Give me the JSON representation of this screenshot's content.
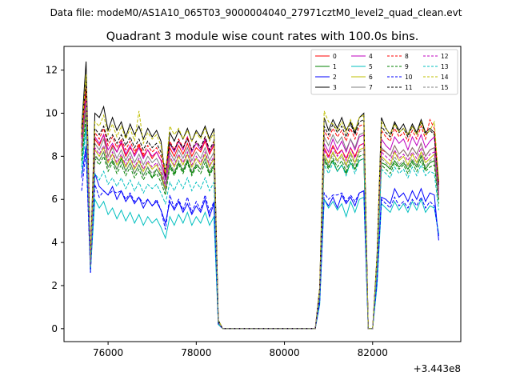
{
  "figure": {
    "suptitle": "Data file: modeM0/AS1A10_065T03_9000004040_27971cztM0_level2_quad_clean.evt"
  },
  "chart_data": {
    "type": "line",
    "title": "Quadrant 3 module wise count rates with 100.0s bins.",
    "xlabel": "",
    "ylabel": "",
    "offset_label": "+3.443e8",
    "xlim": [
      75000,
      84000
    ],
    "ylim": [
      -0.6,
      13.1
    ],
    "xticks": [
      76000,
      78000,
      80000,
      82000
    ],
    "xtick_labels": [
      "76000",
      "78000",
      "80000",
      "82000"
    ],
    "yticks": [
      0,
      2,
      4,
      6,
      8,
      10,
      12
    ],
    "ytick_labels": [
      "0",
      "2",
      "4",
      "6",
      "8",
      "10",
      "12"
    ],
    "legend_position": "top-right",
    "legend_columns": 4,
    "x": [
      75400,
      75500,
      75600,
      75700,
      75800,
      75900,
      76000,
      76100,
      76200,
      76300,
      76400,
      76500,
      76600,
      76700,
      76800,
      76900,
      77000,
      77100,
      77200,
      77300,
      77400,
      77500,
      77600,
      77700,
      77800,
      77900,
      78000,
      78100,
      78200,
      78300,
      78400,
      78500,
      78600,
      78700,
      80700,
      80800,
      80900,
      81000,
      81100,
      81200,
      81300,
      81400,
      81500,
      81600,
      81700,
      81800,
      81900,
      82000,
      82100,
      82200,
      82300,
      82400,
      82500,
      82600,
      82700,
      82800,
      82900,
      83000,
      83100,
      83200,
      83300,
      83400,
      83500
    ],
    "series": [
      {
        "name": "0",
        "color": "#ff0000",
        "dash": "solid",
        "values": [
          8.5,
          11.0,
          3.0,
          8.8,
          8.5,
          9.0,
          8.0,
          8.5,
          8.2,
          8.6,
          8.0,
          8.4,
          8.1,
          8.5,
          8.0,
          8.3,
          7.9,
          8.2,
          7.8,
          7.0,
          8.4,
          8.0,
          8.5,
          8.1,
          8.6,
          8.0,
          8.4,
          8.2,
          8.7,
          8.1,
          8.5,
          0.3,
          0.0,
          0.0,
          0.0,
          1.7,
          8.4,
          8.0,
          8.5,
          8.1,
          8.3,
          7.9,
          8.4,
          8.0,
          8.5,
          8.6,
          0.0,
          0.0,
          3.0,
          8.3,
          8.2,
          8.0,
          8.5,
          8.1,
          8.3,
          8.0,
          8.4,
          8.1,
          8.6,
          8.0,
          8.3,
          8.4,
          6.5
        ]
      },
      {
        "name": "1",
        "color": "#008000",
        "dash": "solid",
        "values": [
          8.2,
          10.5,
          2.9,
          8.0,
          7.8,
          8.2,
          7.5,
          7.8,
          7.4,
          7.9,
          7.3,
          7.7,
          7.2,
          7.6,
          7.1,
          7.5,
          7.0,
          7.4,
          7.1,
          6.4,
          7.6,
          7.2,
          7.7,
          7.3,
          7.8,
          7.2,
          7.6,
          7.4,
          7.9,
          7.2,
          7.6,
          0.3,
          0.0,
          0.0,
          0.0,
          1.6,
          7.9,
          7.5,
          7.8,
          7.3,
          7.6,
          7.2,
          7.7,
          7.4,
          7.8,
          7.9,
          0.0,
          0.0,
          2.9,
          7.7,
          7.6,
          7.4,
          7.8,
          7.5,
          7.7,
          7.4,
          7.8,
          7.5,
          8.0,
          7.4,
          7.7,
          7.8,
          6.0
        ]
      },
      {
        "name": "2",
        "color": "#0000ff",
        "dash": "solid",
        "values": [
          7.0,
          8.5,
          2.6,
          7.2,
          6.6,
          6.4,
          6.2,
          6.6,
          6.0,
          6.4,
          5.9,
          6.2,
          5.8,
          6.1,
          5.6,
          6.0,
          5.7,
          5.9,
          5.5,
          4.9,
          5.9,
          5.5,
          5.9,
          5.4,
          5.8,
          5.3,
          5.7,
          5.4,
          6.0,
          5.2,
          5.8,
          0.2,
          0.0,
          0.0,
          0.0,
          1.3,
          6.0,
          5.7,
          6.1,
          5.6,
          6.2,
          5.8,
          6.1,
          5.7,
          6.3,
          6.4,
          0.0,
          0.0,
          2.3,
          6.1,
          6.0,
          5.8,
          6.5,
          6.1,
          6.3,
          5.9,
          6.4,
          6.0,
          6.5,
          5.9,
          6.3,
          6.2,
          4.1
        ]
      },
      {
        "name": "3",
        "color": "#000000",
        "dash": "solid",
        "values": [
          9.3,
          12.4,
          3.2,
          10.0,
          9.8,
          10.3,
          9.2,
          9.8,
          9.2,
          9.6,
          8.9,
          9.5,
          9.0,
          9.4,
          8.8,
          9.3,
          8.9,
          9.2,
          8.7,
          7.0,
          9.1,
          8.7,
          9.2,
          8.8,
          9.3,
          8.7,
          9.2,
          8.9,
          9.4,
          8.8,
          9.3,
          0.4,
          0.0,
          0.0,
          0.0,
          1.9,
          9.8,
          9.2,
          9.7,
          9.3,
          9.8,
          9.2,
          9.6,
          9.1,
          9.8,
          10.0,
          0.0,
          0.0,
          3.4,
          9.8,
          9.3,
          9.0,
          9.6,
          9.2,
          9.5,
          9.0,
          9.5,
          9.1,
          9.7,
          9.1,
          9.3,
          9.1,
          6.8
        ]
      },
      {
        "name": "4",
        "color": "#bf00bf",
        "dash": "solid",
        "values": [
          8.8,
          11.3,
          3.1,
          8.9,
          8.6,
          9.0,
          8.3,
          8.6,
          8.2,
          8.7,
          8.1,
          8.5,
          8.0,
          8.4,
          7.9,
          8.3,
          8.0,
          8.2,
          7.8,
          6.9,
          8.6,
          8.2,
          8.7,
          8.3,
          8.9,
          8.2,
          8.6,
          8.3,
          8.8,
          8.2,
          8.6,
          0.3,
          0.0,
          0.0,
          0.0,
          1.8,
          8.6,
          8.2,
          8.8,
          8.3,
          8.7,
          8.2,
          8.8,
          8.3,
          8.9,
          9.0,
          0.0,
          0.0,
          3.1,
          8.8,
          8.5,
          8.3,
          8.9,
          8.6,
          8.8,
          8.3,
          8.9,
          8.5,
          9.0,
          8.4,
          8.7,
          8.9,
          6.3
        ]
      },
      {
        "name": "5",
        "color": "#00bfbf",
        "dash": "solid",
        "values": [
          7.5,
          9.5,
          2.7,
          6.0,
          5.6,
          5.9,
          5.3,
          5.6,
          5.1,
          5.5,
          5.0,
          5.4,
          4.9,
          5.3,
          4.8,
          5.2,
          4.9,
          5.1,
          4.7,
          4.2,
          5.2,
          4.8,
          5.3,
          4.9,
          5.4,
          4.8,
          5.2,
          4.9,
          5.4,
          4.8,
          5.2,
          0.2,
          0.0,
          0.0,
          0.0,
          1.1,
          6.0,
          5.6,
          5.9,
          5.5,
          5.8,
          5.2,
          5.9,
          5.4,
          6.0,
          6.1,
          0.0,
          0.0,
          2.0,
          5.8,
          5.6,
          5.4,
          5.9,
          5.5,
          5.8,
          5.4,
          5.9,
          5.5,
          6.0,
          5.4,
          5.7,
          5.6,
          4.4
        ]
      },
      {
        "name": "6",
        "color": "#bfbf00",
        "dash": "solid",
        "values": [
          8.0,
          10.2,
          2.9,
          8.3,
          8.0,
          8.4,
          7.7,
          8.1,
          7.6,
          8.0,
          7.5,
          7.9,
          7.4,
          7.8,
          7.3,
          7.7,
          7.4,
          7.6,
          7.2,
          6.5,
          7.9,
          7.5,
          8.0,
          7.6,
          8.1,
          7.5,
          7.9,
          7.6,
          8.1,
          7.5,
          7.9,
          0.3,
          0.0,
          0.0,
          0.0,
          1.6,
          8.1,
          7.7,
          8.2,
          7.8,
          8.1,
          7.6,
          8.2,
          7.7,
          8.3,
          8.4,
          0.0,
          0.0,
          2.9,
          8.0,
          7.8,
          7.6,
          8.2,
          7.8,
          8.0,
          7.6,
          8.1,
          7.7,
          8.2,
          7.7,
          7.9,
          8.1,
          6.1
        ]
      },
      {
        "name": "7",
        "color": "#808080",
        "dash": "solid",
        "values": [
          8.6,
          10.8,
          3.0,
          8.6,
          8.3,
          8.8,
          8.0,
          8.4,
          7.9,
          8.3,
          7.8,
          8.2,
          7.7,
          8.1,
          7.6,
          8.0,
          7.7,
          7.9,
          7.5,
          6.7,
          8.2,
          7.8,
          8.3,
          7.9,
          8.4,
          7.8,
          8.2,
          7.9,
          8.4,
          7.8,
          8.2,
          0.3,
          0.0,
          0.0,
          0.0,
          1.7,
          8.9,
          8.5,
          9.0,
          8.6,
          8.9,
          8.3,
          8.8,
          8.4,
          9.0,
          9.1,
          0.0,
          0.0,
          3.0,
          8.4,
          8.2,
          8.0,
          8.5,
          8.1,
          8.3,
          8.0,
          8.4,
          8.1,
          8.6,
          8.0,
          8.3,
          8.4,
          6.4
        ]
      },
      {
        "name": "8",
        "color": "#ff0000",
        "dash": "dashed",
        "values": [
          8.9,
          11.1,
          3.1,
          9.1,
          8.8,
          9.3,
          8.5,
          8.9,
          8.4,
          8.8,
          8.3,
          8.7,
          8.2,
          8.6,
          8.1,
          8.5,
          8.2,
          8.4,
          8.0,
          7.2,
          8.7,
          8.3,
          8.8,
          8.4,
          8.9,
          8.3,
          8.7,
          8.4,
          8.9,
          8.3,
          8.7,
          0.3,
          0.0,
          0.0,
          0.0,
          1.8,
          9.2,
          8.8,
          9.3,
          8.9,
          9.2,
          8.7,
          9.3,
          8.8,
          9.4,
          9.5,
          0.0,
          0.0,
          3.2,
          9.2,
          8.9,
          8.7,
          9.3,
          8.9,
          9.1,
          8.7,
          9.2,
          8.8,
          9.4,
          8.8,
          9.7,
          9.3,
          6.7
        ]
      },
      {
        "name": "9",
        "color": "#008000",
        "dash": "dashed",
        "values": [
          7.8,
          9.9,
          2.8,
          7.9,
          7.6,
          8.0,
          7.3,
          7.7,
          7.2,
          7.6,
          7.1,
          7.5,
          7.0,
          7.4,
          6.9,
          7.3,
          7.0,
          7.2,
          6.8,
          6.2,
          7.5,
          7.1,
          7.6,
          7.2,
          7.7,
          7.1,
          7.5,
          7.2,
          7.7,
          7.1,
          7.5,
          0.3,
          0.0,
          0.0,
          0.0,
          1.5,
          7.8,
          7.4,
          7.9,
          7.5,
          7.8,
          7.3,
          7.9,
          7.4,
          8.0,
          8.1,
          0.0,
          0.0,
          2.8,
          7.6,
          7.4,
          7.2,
          7.7,
          7.4,
          7.6,
          7.2,
          7.7,
          7.3,
          7.8,
          7.3,
          7.5,
          7.6,
          5.8
        ]
      },
      {
        "name": "10",
        "color": "#0000ff",
        "dash": "dashed",
        "values": [
          6.4,
          8.2,
          2.6,
          6.7,
          6.1,
          6.4,
          6.2,
          6.4,
          6.3,
          6.4,
          6.0,
          6.3,
          5.9,
          6.1,
          5.8,
          6.0,
          5.7,
          6.0,
          5.5,
          4.6,
          6.2,
          5.6,
          6.0,
          5.5,
          6.1,
          5.4,
          5.9,
          5.5,
          6.2,
          5.4,
          5.9,
          0.2,
          0.0,
          0.0,
          0.0,
          1.2,
          6.3,
          6.0,
          6.2,
          6.2,
          6.3,
          5.9,
          6.2,
          5.9,
          6.3,
          6.4,
          0.0,
          0.0,
          2.2,
          6.0,
          5.8,
          5.6,
          6.1,
          5.7,
          5.9,
          5.6,
          6.0,
          5.7,
          6.1,
          5.6,
          5.9,
          5.7,
          4.3
        ]
      },
      {
        "name": "11",
        "color": "#000000",
        "dash": "dashed",
        "values": [
          9.0,
          11.6,
          3.1,
          9.3,
          9.0,
          9.4,
          8.7,
          9.0,
          8.6,
          9.0,
          8.5,
          8.9,
          8.4,
          8.8,
          8.3,
          8.7,
          8.4,
          8.6,
          8.2,
          7.4,
          8.6,
          8.3,
          8.7,
          8.4,
          8.8,
          8.3,
          8.7,
          8.4,
          8.9,
          8.3,
          8.7,
          0.3,
          0.0,
          0.0,
          0.0,
          1.8,
          9.4,
          9.0,
          9.5,
          9.1,
          9.4,
          8.9,
          9.5,
          9.0,
          9.6,
          9.7,
          0.0,
          0.0,
          3.3,
          9.4,
          9.1,
          8.9,
          9.5,
          9.1,
          9.3,
          8.9,
          9.4,
          9.0,
          9.6,
          9.0,
          9.2,
          9.0,
          6.6
        ]
      },
      {
        "name": "12",
        "color": "#bf00bf",
        "dash": "dashed",
        "values": [
          8.4,
          10.6,
          3.0,
          8.4,
          8.1,
          8.5,
          7.8,
          8.2,
          7.7,
          8.1,
          7.6,
          8.0,
          7.5,
          7.9,
          7.4,
          7.8,
          7.5,
          7.7,
          7.3,
          6.6,
          8.0,
          7.6,
          8.1,
          7.7,
          8.2,
          7.6,
          8.0,
          7.7,
          8.2,
          7.6,
          8.0,
          0.3,
          0.0,
          0.0,
          0.0,
          1.7,
          8.3,
          7.9,
          8.4,
          8.0,
          8.3,
          7.8,
          8.4,
          7.9,
          8.5,
          8.6,
          0.0,
          0.0,
          3.0,
          8.2,
          8.0,
          7.8,
          8.3,
          7.9,
          8.1,
          7.8,
          8.2,
          7.9,
          8.4,
          7.8,
          8.1,
          8.2,
          6.2
        ]
      },
      {
        "name": "13",
        "color": "#00bfbf",
        "dash": "dashed",
        "values": [
          7.2,
          9.2,
          2.8,
          7.2,
          6.9,
          7.3,
          6.7,
          7.0,
          6.6,
          7.0,
          6.5,
          6.9,
          6.4,
          6.8,
          6.3,
          6.7,
          6.5,
          6.7,
          6.3,
          5.8,
          6.8,
          6.4,
          6.9,
          6.5,
          7.0,
          6.4,
          6.8,
          6.5,
          7.0,
          6.4,
          6.8,
          0.2,
          0.0,
          0.0,
          0.0,
          1.5,
          7.6,
          7.2,
          7.7,
          7.3,
          7.6,
          7.1,
          7.7,
          7.2,
          7.8,
          7.9,
          0.0,
          0.0,
          2.7,
          7.4,
          7.2,
          7.0,
          7.5,
          7.2,
          7.4,
          7.0,
          7.5,
          7.1,
          7.6,
          7.1,
          7.3,
          7.2,
          5.5
        ]
      },
      {
        "name": "14",
        "color": "#bfbf00",
        "dash": "dashed",
        "values": [
          9.1,
          11.8,
          3.2,
          9.6,
          9.4,
          9.9,
          9.0,
          9.5,
          8.9,
          9.4,
          8.8,
          9.3,
          8.7,
          10.1,
          8.6,
          9.1,
          8.8,
          9.0,
          8.5,
          7.2,
          9.4,
          9.0,
          9.3,
          8.8,
          9.2,
          8.7,
          9.1,
          8.8,
          9.3,
          8.7,
          9.1,
          0.4,
          0.0,
          0.0,
          0.0,
          1.9,
          10.1,
          9.6,
          9.5,
          9.2,
          9.6,
          9.1,
          9.7,
          9.2,
          9.8,
          9.9,
          0.0,
          0.0,
          3.4,
          9.6,
          9.3,
          9.0,
          9.5,
          9.1,
          9.3,
          9.0,
          9.4,
          9.0,
          9.6,
          9.0,
          9.2,
          9.6,
          6.9
        ]
      },
      {
        "name": "15",
        "color": "#808080",
        "dash": "dashed",
        "values": [
          8.1,
          10.3,
          2.9,
          8.1,
          7.8,
          8.2,
          7.5,
          7.9,
          7.4,
          7.8,
          7.3,
          7.7,
          7.2,
          7.6,
          7.1,
          7.5,
          7.2,
          7.4,
          7.0,
          6.4,
          7.7,
          7.3,
          7.8,
          7.4,
          7.9,
          7.3,
          7.7,
          7.4,
          7.9,
          7.3,
          7.7,
          0.3,
          0.0,
          0.0,
          0.0,
          1.6,
          8.0,
          7.6,
          8.1,
          7.7,
          8.0,
          7.5,
          8.1,
          7.6,
          8.2,
          8.3,
          0.0,
          0.0,
          2.9,
          7.9,
          7.7,
          7.5,
          8.0,
          7.6,
          7.8,
          7.5,
          7.9,
          7.6,
          8.1,
          7.5,
          7.8,
          7.9,
          6.0
        ]
      }
    ]
  }
}
